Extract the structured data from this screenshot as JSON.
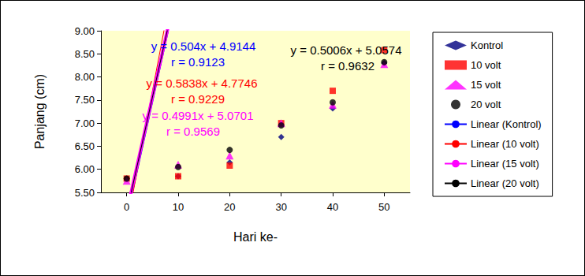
{
  "chart_data": {
    "type": "scatter",
    "x_label": "Hari ke-",
    "y_label": "Panjang (cm)",
    "x": [
      0,
      10,
      20,
      30,
      40,
      50
    ],
    "xlim": [
      -5,
      55
    ],
    "xticks": [
      0,
      10,
      20,
      30,
      40,
      50
    ],
    "ylim": [
      5.5,
      9.0
    ],
    "yticks": [
      {
        "value": 5.5,
        "label": "5.50"
      },
      {
        "value": 6.0,
        "label": "6.00"
      },
      {
        "value": 6.5,
        "label": "6.50"
      },
      {
        "value": 7.0,
        "label": "7.00"
      },
      {
        "value": 7.5,
        "label": "7.50"
      },
      {
        "value": 8.0,
        "label": "8.00"
      },
      {
        "value": 8.5,
        "label": "8.50"
      },
      {
        "value": 9.0,
        "label": "9.00"
      }
    ],
    "grid": false,
    "legend": "right",
    "series": [
      {
        "name": "Kontrol",
        "color": "#000080",
        "marker": "diamond",
        "values": [
          5.8,
          5.85,
          6.15,
          6.7,
          7.32,
          8.3
        ],
        "trend": {
          "name": "Linear (Kontrol)",
          "color": "#0000ff",
          "line_style": "solid",
          "slope": 0.504,
          "intercept": 4.9144,
          "equation": "y = 0.504x + 4.9144",
          "r_label": "r = 0.9123"
        }
      },
      {
        "name": "10 volt",
        "color": "#ff0000",
        "marker": "square",
        "values": [
          5.8,
          5.85,
          6.08,
          7.0,
          7.7,
          8.58
        ],
        "trend": {
          "name": "Linear (10 volt)",
          "color": "#ff0000",
          "line_style": "solid",
          "slope": 0.5838,
          "intercept": 4.7746,
          "equation": "y = 0.5838x + 4.7746",
          "r_label": "r = 0.9229"
        }
      },
      {
        "name": "15 volt",
        "color": "#ff00ff",
        "marker": "triangle",
        "values": [
          5.75,
          6.1,
          6.3,
          7.0,
          7.4,
          8.28
        ],
        "trend": {
          "name": "Linear (15 volt)",
          "color": "#ff00ff",
          "line_style": "solid",
          "slope": 0.4991,
          "intercept": 5.0701,
          "equation": "y = 0.4991x + 5.0701",
          "r_label": "r = 0.9569"
        }
      },
      {
        "name": "20 volt",
        "color": "#000000",
        "marker": "circle",
        "values": [
          5.8,
          6.05,
          6.42,
          6.95,
          7.45,
          8.32
        ],
        "trend": {
          "name": "Linear (20 volt)",
          "color": "#000000",
          "line_style": "solid",
          "slope": 0.5006,
          "intercept": 5.0574,
          "equation": "y = 0.5006x + 5.0574",
          "r_label": "r = 0.9632"
        }
      }
    ]
  }
}
